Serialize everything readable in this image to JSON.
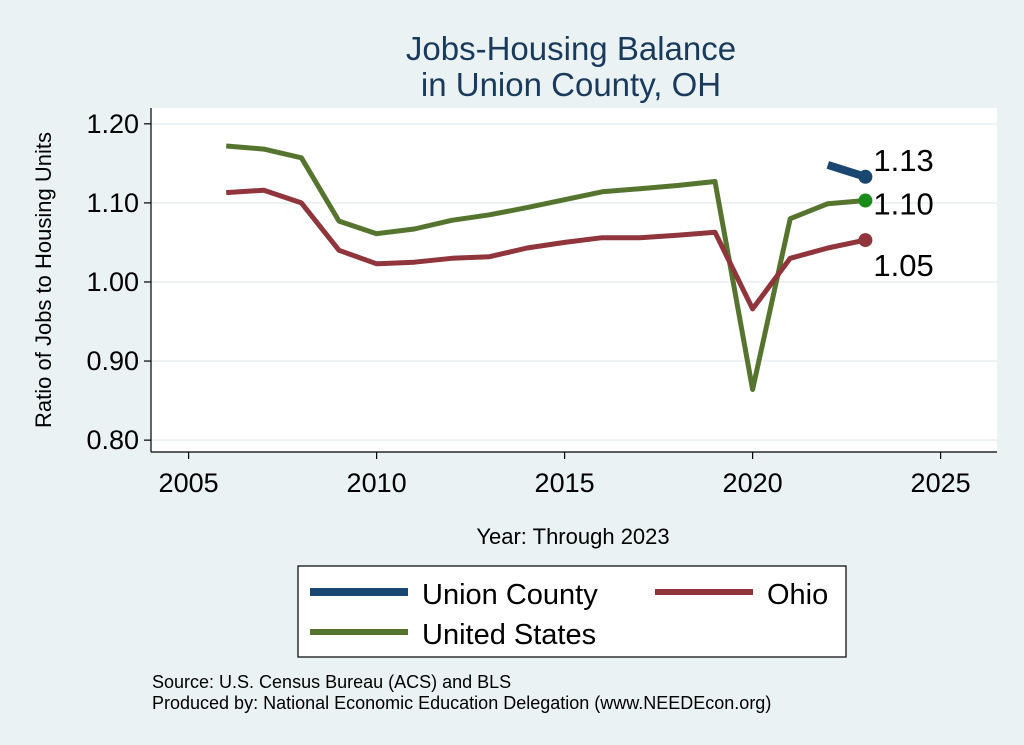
{
  "chart_data": {
    "type": "line",
    "title": [
      "Jobs-Housing Balance",
      "in Union County, OH"
    ],
    "xlabel": "Year: Through 2023",
    "ylabel": "Ratio of Jobs to Housing Units",
    "xlim": [
      2004,
      2026.5
    ],
    "ylim": [
      0.785,
      1.22
    ],
    "xticks": [
      2005,
      2010,
      2015,
      2020,
      2025
    ],
    "yticks": [
      0.8,
      0.9,
      1.0,
      1.1,
      1.2
    ],
    "ytick_labels": [
      "0.80",
      "0.90",
      "1.00",
      "1.10",
      "1.20"
    ],
    "grid": true,
    "series": [
      {
        "name": "Union County",
        "color": "#1a476f",
        "x": [
          2022,
          2023
        ],
        "y": [
          1.148,
          1.133
        ],
        "end_label": "1.13"
      },
      {
        "name": "Ohio",
        "color": "#90353b",
        "x": [
          2006,
          2007,
          2008,
          2009,
          2010,
          2011,
          2012,
          2013,
          2014,
          2015,
          2016,
          2017,
          2018,
          2019,
          2020,
          2021,
          2022,
          2023
        ],
        "y": [
          1.113,
          1.116,
          1.1,
          1.04,
          1.023,
          1.025,
          1.03,
          1.032,
          1.043,
          1.05,
          1.056,
          1.056,
          1.059,
          1.063,
          0.966,
          1.03,
          1.043,
          1.053
        ],
        "end_label": "1.05"
      },
      {
        "name": "United States",
        "color": "#55752f",
        "x": [
          2006,
          2007,
          2008,
          2009,
          2010,
          2011,
          2012,
          2013,
          2014,
          2015,
          2016,
          2017,
          2018,
          2019,
          2020,
          2021,
          2022,
          2023
        ],
        "y": [
          1.172,
          1.168,
          1.157,
          1.077,
          1.061,
          1.067,
          1.078,
          1.085,
          1.094,
          1.104,
          1.114,
          1.118,
          1.122,
          1.127,
          0.864,
          1.08,
          1.099,
          1.103
        ],
        "end_label": "1.10"
      }
    ],
    "end_marker_colors": {
      "Union County": "#1a476f",
      "Ohio": "#90353b",
      "United States": "#1a8c1a"
    },
    "legend": {
      "position": "bottom",
      "entries": [
        "Union County",
        "Ohio",
        "United States"
      ]
    }
  },
  "source": {
    "line1": "Source: U.S. Census Bureau (ACS) and BLS",
    "line2": "Produced by: National Economic Education Delegation (www.NEEDEcon.org)"
  }
}
